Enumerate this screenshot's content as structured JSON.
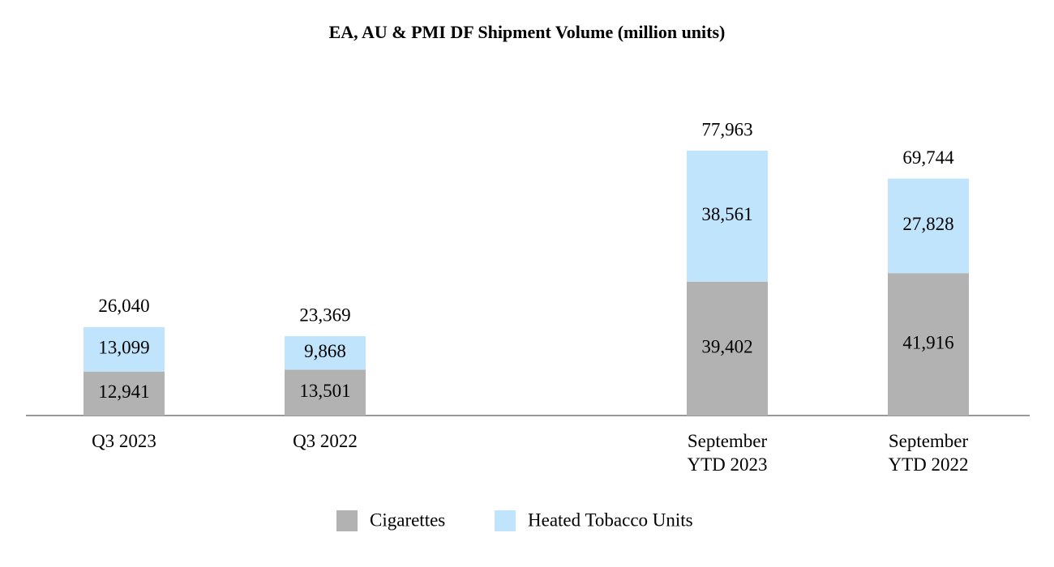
{
  "chart_data": {
    "type": "stacked-bar",
    "title": "EA, AU & PMI DF Shipment Volume (million units)",
    "categories": [
      "Q3 2023",
      "Q3 2022",
      null,
      "September YTD 2023",
      "September YTD 2022"
    ],
    "series": [
      {
        "name": "Cigarettes",
        "color": "#b2b2b2",
        "values": [
          12941,
          13501,
          null,
          39402,
          41916
        ],
        "value_labels": [
          "12,941",
          "13,501",
          null,
          "39,402",
          "41,916"
        ]
      },
      {
        "name": "Heated Tobacco Units",
        "color": "#bfe4fb",
        "values": [
          13099,
          9868,
          null,
          38561,
          27828
        ],
        "value_labels": [
          "13,099",
          "9,868",
          null,
          "38,561",
          "27,828"
        ]
      }
    ],
    "totals": [
      26040,
      23369,
      null,
      77963,
      69744
    ],
    "total_labels": [
      "26,040",
      "23,369",
      null,
      "77,963",
      "69,744"
    ],
    "legend": "bottom"
  }
}
